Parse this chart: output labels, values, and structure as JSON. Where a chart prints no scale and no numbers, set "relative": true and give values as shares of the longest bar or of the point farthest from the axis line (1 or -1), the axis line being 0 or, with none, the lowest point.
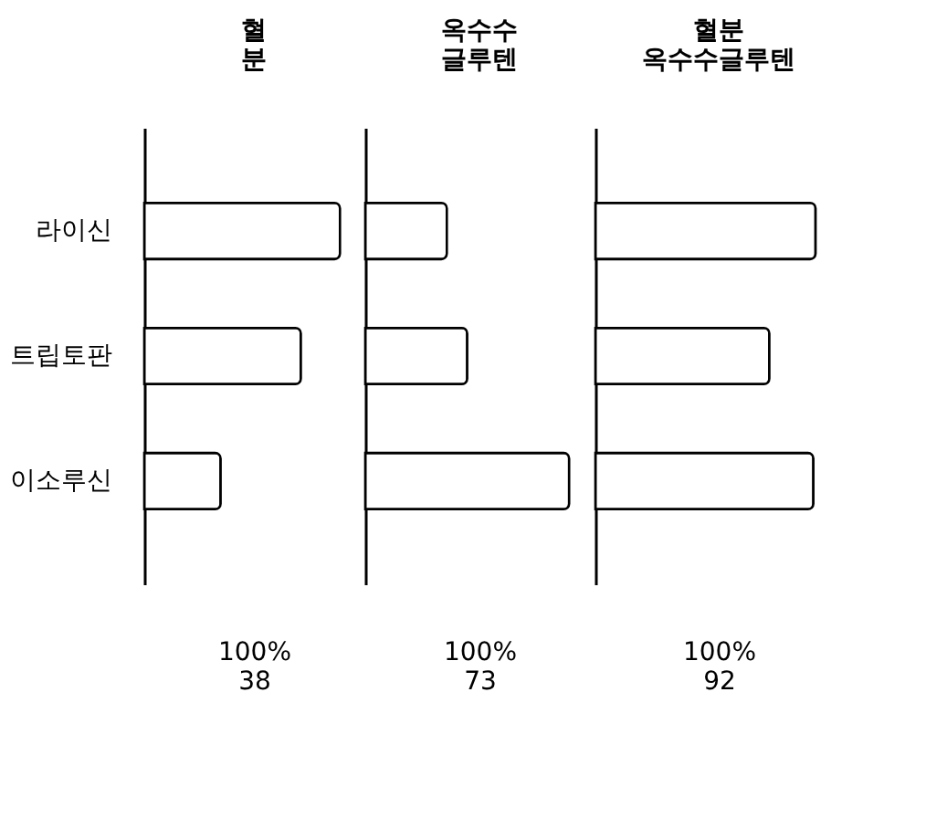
{
  "chart_data": [
    {
      "type": "bar",
      "orientation": "horizontal",
      "relative": true,
      "title": "혈 분",
      "categories": [
        "라이신",
        "트립토판",
        "이소루신"
      ],
      "values": [
        1,
        0.8,
        0.39
      ],
      "color": "#000000",
      "annotations": [
        "100%",
        "38"
      ]
    },
    {
      "type": "bar",
      "orientation": "horizontal",
      "relative": true,
      "title": "옥수수 글루텐",
      "categories": [
        null,
        null,
        null
      ],
      "values": [
        0.4,
        0.5,
        1
      ],
      "color": "#000000",
      "annotations": [
        "100%",
        "73"
      ],
      "tick_labels": false
    },
    {
      "type": "bar",
      "orientation": "horizontal",
      "relative": true,
      "title": "혈분 옥수수글루텐",
      "categories": [
        null,
        null,
        null
      ],
      "values": [
        1,
        0.79,
        0.99
      ],
      "color": "#000000",
      "annotations": [
        "100%",
        "92"
      ],
      "tick_labels": false
    }
  ]
}
